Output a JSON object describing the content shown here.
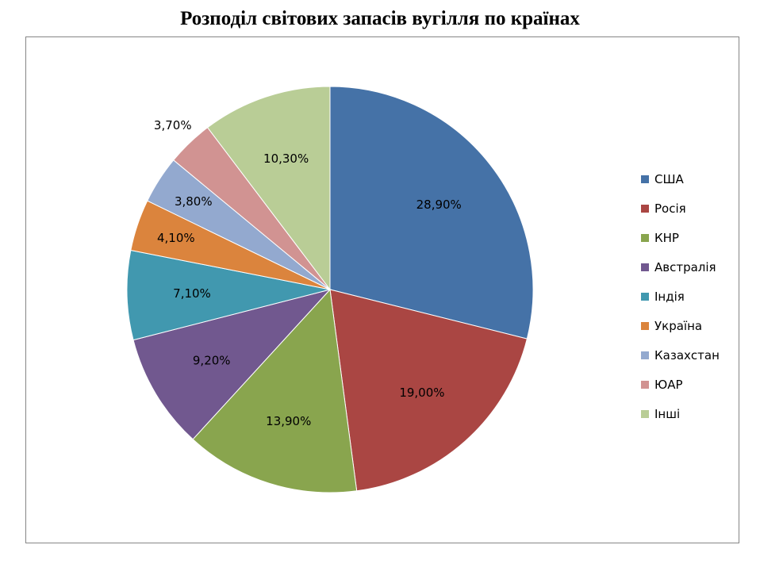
{
  "chart_data": {
    "type": "pie",
    "title": "Розподіл світових запасів вугілля по країнах",
    "slices": [
      {
        "label": "США",
        "value": 28.9,
        "display": "28,90%",
        "color": "#4572A7"
      },
      {
        "label": "Росія",
        "value": 19.0,
        "display": "19,00%",
        "color": "#AA4643"
      },
      {
        "label": "КНР",
        "value": 13.9,
        "display": "13,90%",
        "color": "#89A54E"
      },
      {
        "label": "Австралія",
        "value": 9.2,
        "display": "9,20%",
        "color": "#71588F"
      },
      {
        "label": "Індія",
        "value": 7.1,
        "display": "7,10%",
        "color": "#4198AF"
      },
      {
        "label": "Україна",
        "value": 4.1,
        "display": "4,10%",
        "color": "#DB843D"
      },
      {
        "label": "Казахстан",
        "value": 3.8,
        "display": "3,80%",
        "color": "#93A9CF"
      },
      {
        "label": "ЮАР",
        "value": 3.7,
        "display": "3,70%",
        "color": "#D19392"
      },
      {
        "label": "Інші",
        "value": 10.3,
        "display": "10,30%",
        "color": "#B9CD96"
      }
    ],
    "legend_position": "right"
  }
}
